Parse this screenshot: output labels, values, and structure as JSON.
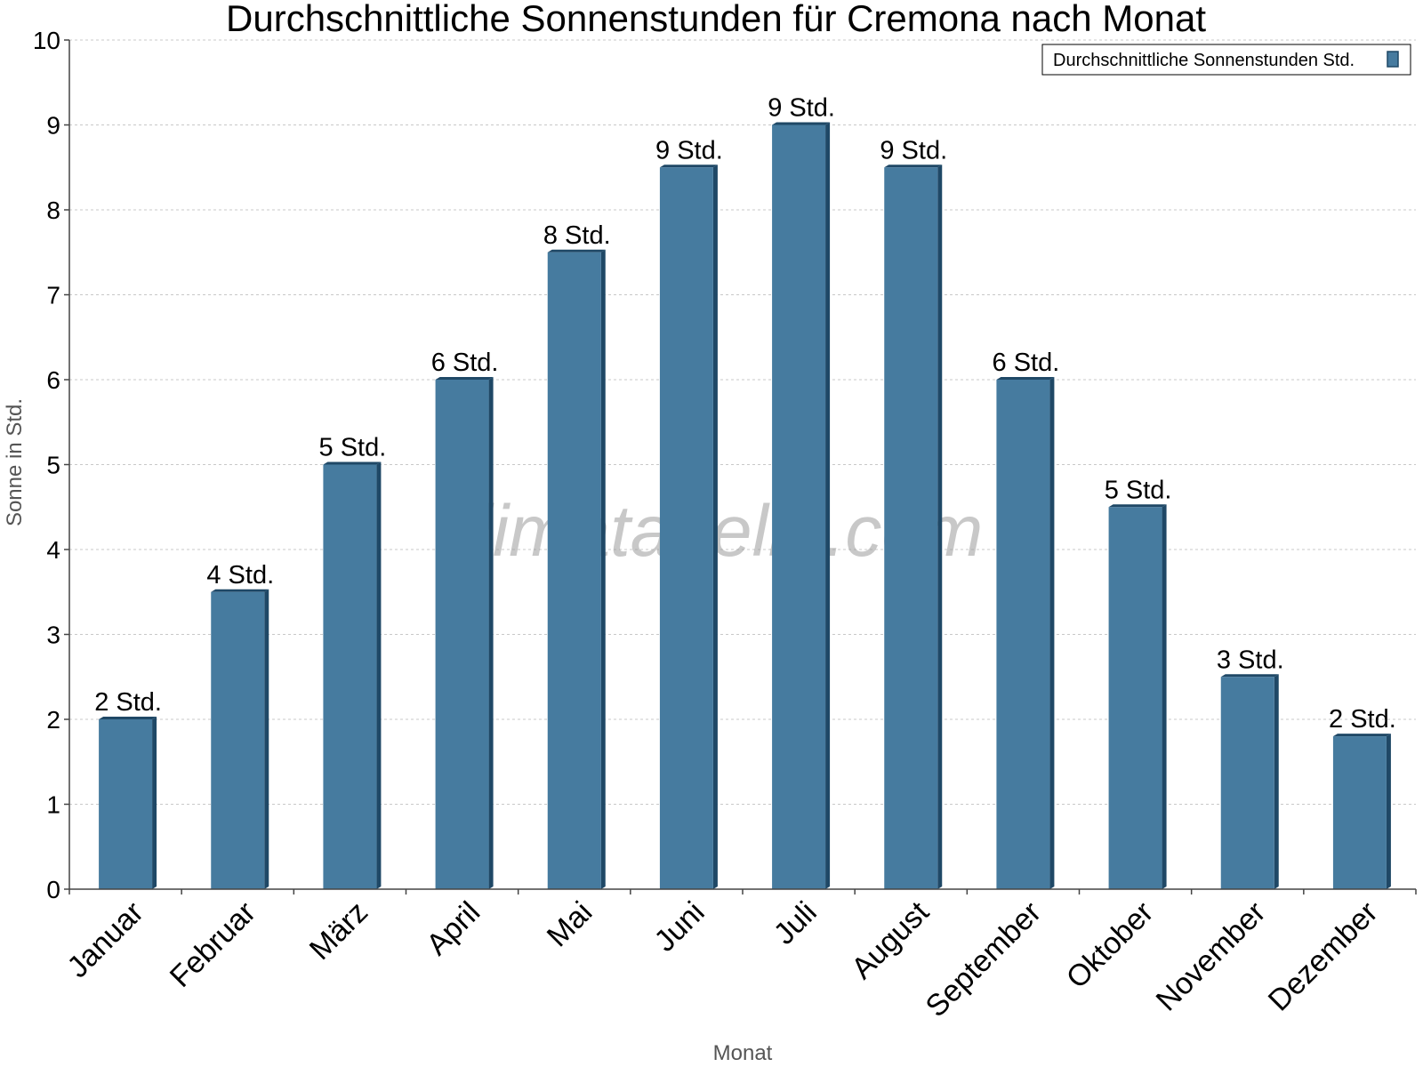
{
  "chart_data": {
    "type": "bar",
    "title": "Durchschnittliche Sonnenstunden für Cremona nach Monat",
    "xlabel": "Monat",
    "ylabel": "Sonne in Std.",
    "ylim": [
      0,
      10
    ],
    "yticks": [
      0,
      1,
      2,
      3,
      4,
      5,
      6,
      7,
      8,
      9,
      10
    ],
    "grid": true,
    "legend_position": "top-right",
    "watermark": "klimatabelle.com",
    "categories": [
      "Januar",
      "Februar",
      "März",
      "April",
      "Mai",
      "Juni",
      "Juli",
      "August",
      "September",
      "Oktober",
      "November",
      "Dezember"
    ],
    "series": [
      {
        "name": "Durchschnittliche Sonnenstunden Std.",
        "color": "#467b9f",
        "values": [
          2,
          3.5,
          5,
          6,
          7.5,
          8.5,
          9,
          8.5,
          6,
          4.5,
          2.5,
          1.8
        ],
        "labels": [
          "2 Std.",
          "4 Std.",
          "5 Std.",
          "6 Std.",
          "8 Std.",
          "9 Std.",
          "9 Std.",
          "9 Std.",
          "6 Std.",
          "5 Std.",
          "3 Std.",
          "2 Std."
        ]
      }
    ]
  }
}
